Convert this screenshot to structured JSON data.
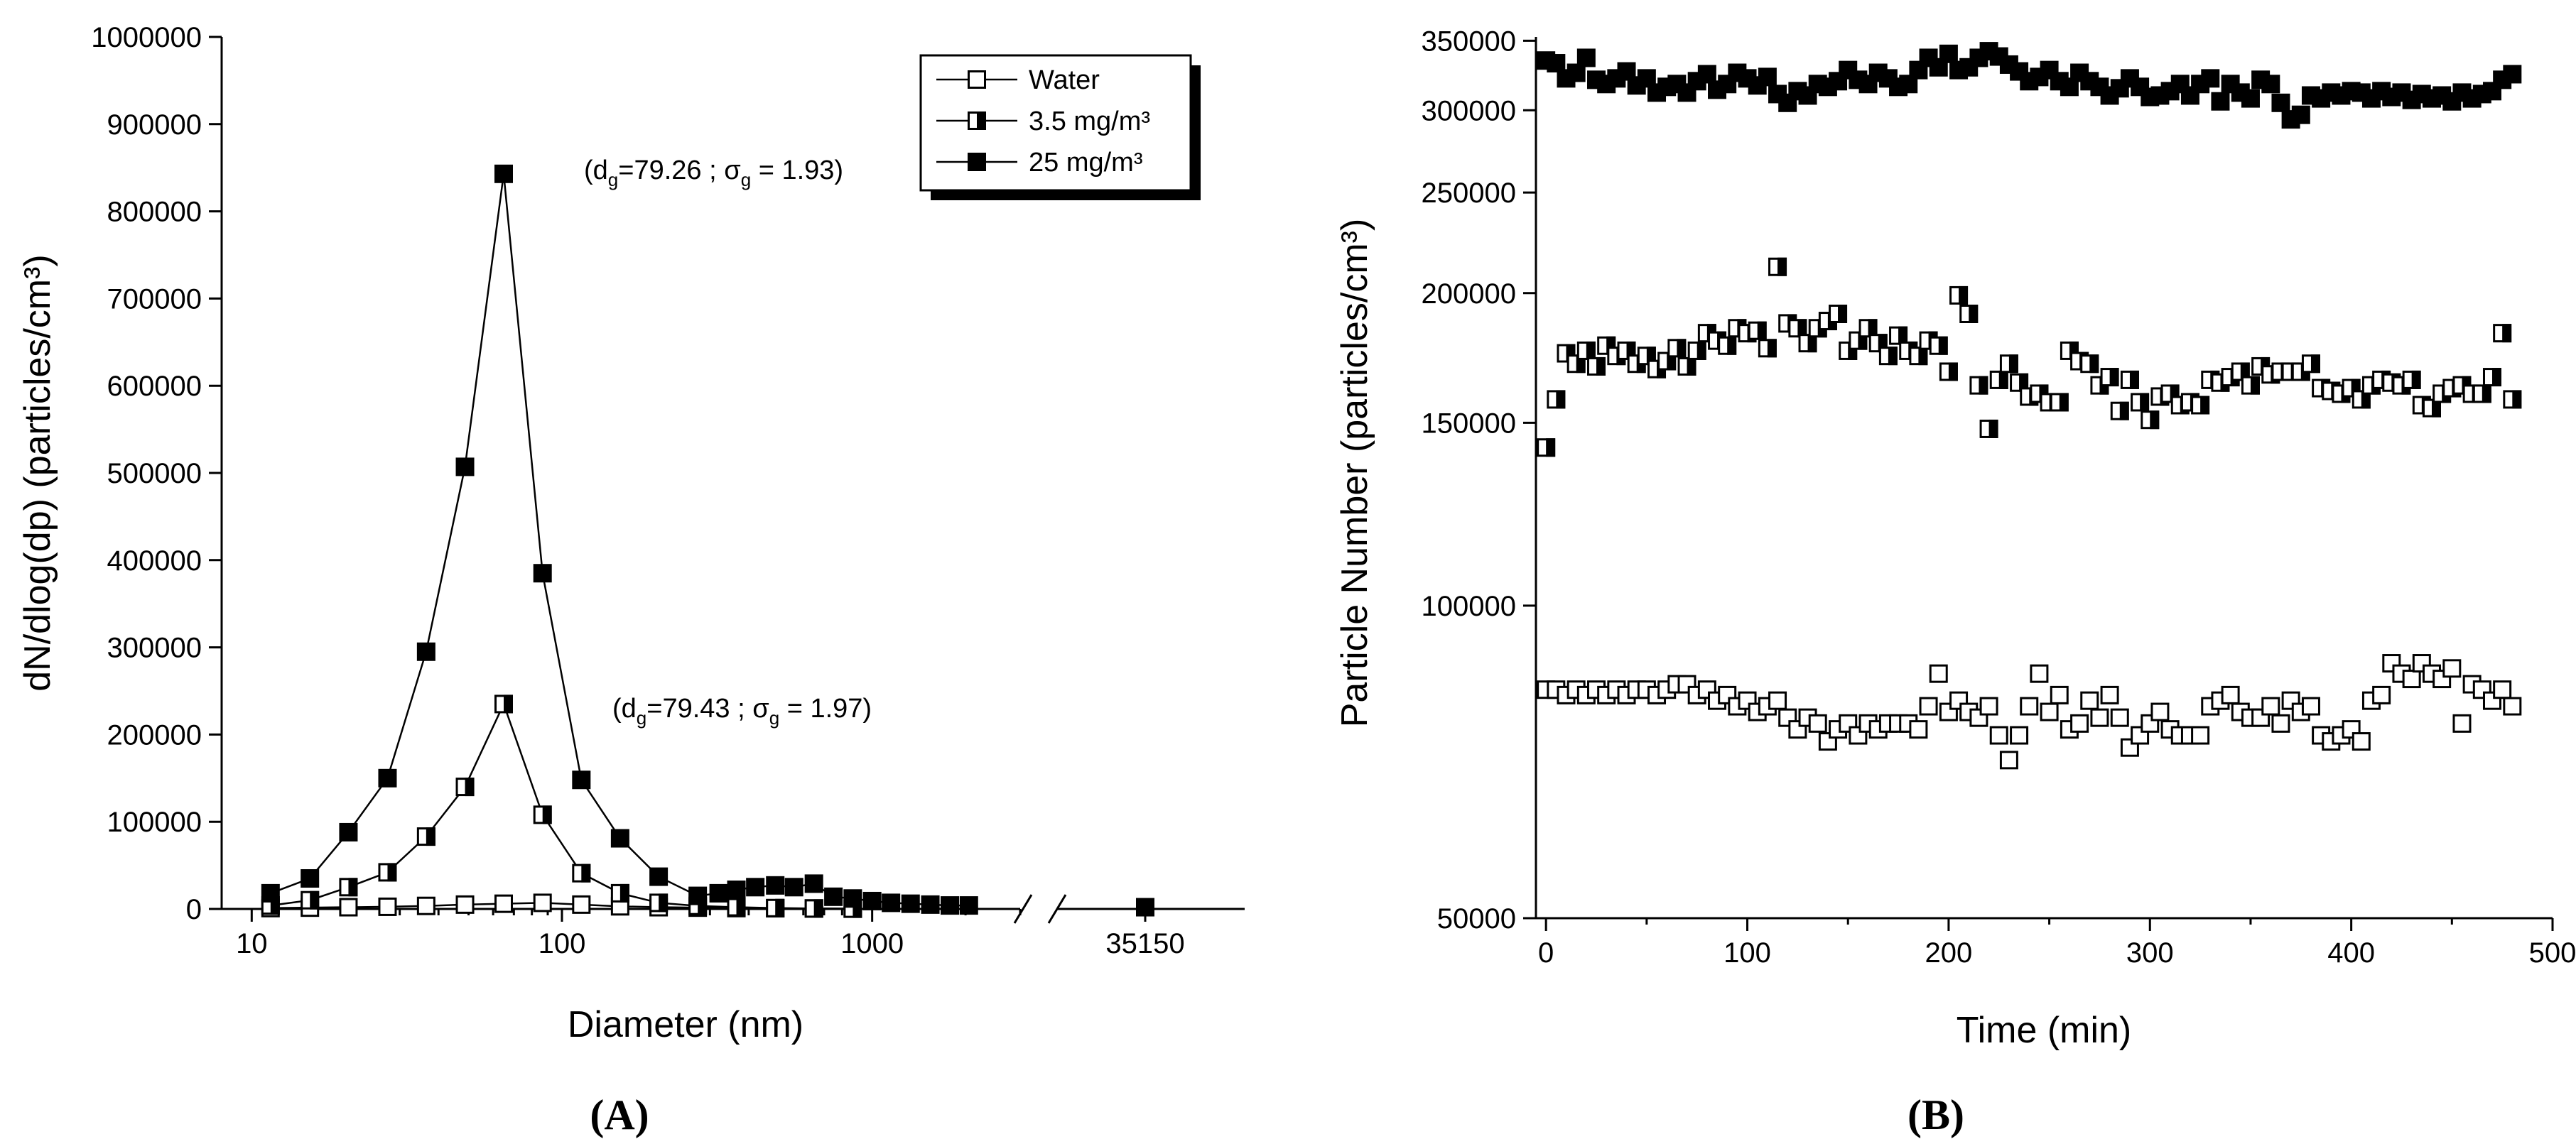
{
  "chart_data": [
    {
      "panel_label": "(A)",
      "type": "line",
      "xscale": "log",
      "xlabel": "Diameter (nm)",
      "ylabel": "dN/dlog(dp) (particles/cm³)",
      "ylim": [
        0,
        1000000
      ],
      "xlim": [
        8,
        3000
      ],
      "x_break_label": "35150",
      "x_ticks": [
        10,
        100,
        1000
      ],
      "y_ticks": [
        0,
        100000,
        200000,
        300000,
        400000,
        500000,
        600000,
        700000,
        800000,
        900000,
        1000000
      ],
      "legend": [
        "Water",
        "3.5 mg/m³",
        "25 mg/m³"
      ],
      "annotations": [
        {
          "text": "(d<sub>g</sub>=79.26 ; σ<sub>g</sub> = 1.93)",
          "prefix": "(d",
          "sub1": "g",
          "mid": "=79.26 ; σ",
          "sub2": "g",
          "suffix": " = 1.93)",
          "series": "25 mg/m³"
        },
        {
          "prefix": "(d",
          "sub1": "g",
          "mid": "=79.43 ; σ",
          "sub2": "g",
          "suffix": " = 1.97)",
          "series": "3.5 mg/m³"
        }
      ],
      "series": [
        {
          "name": "Water",
          "marker": "open",
          "x": [
            11.5,
            15.4,
            20.5,
            27.4,
            36.5,
            48.7,
            64.9,
            86.6,
            115.5,
            154,
            205,
            274,
            365,
            487,
            649,
            866
          ],
          "values": [
            1000,
            1500,
            2000,
            2500,
            3500,
            5000,
            6000,
            7000,
            5000,
            3000,
            2000,
            1500,
            1000,
            800,
            600,
            400
          ]
        },
        {
          "name": "3.5 mg/m³",
          "marker": "half",
          "x": [
            11.5,
            15.4,
            20.5,
            27.4,
            36.5,
            48.7,
            64.9,
            86.6,
            115.5,
            154,
            205,
            274,
            365,
            487,
            649,
            866
          ],
          "values": [
            4000,
            10000,
            25000,
            42000,
            83000,
            140000,
            235000,
            108000,
            41000,
            18000,
            7000,
            3500,
            2000,
            1000,
            500,
            300
          ]
        },
        {
          "name": "25 mg/m³",
          "marker": "filled",
          "x": [
            11.5,
            15.4,
            20.5,
            27.4,
            36.5,
            48.7,
            64.9,
            86.6,
            115.5,
            154,
            205,
            274,
            320,
            365,
            420,
            487,
            560,
            649,
            750,
            866,
            1000,
            1150,
            1330,
            1540,
            1780,
            2050
          ],
          "values": [
            18000,
            35000,
            88000,
            150000,
            295000,
            507000,
            843000,
            385000,
            148000,
            81000,
            37000,
            15000,
            18000,
            22000,
            25000,
            27000,
            25000,
            29000,
            14000,
            12000,
            9000,
            7000,
            6000,
            5000,
            4000,
            4000
          ],
          "break_point": {
            "x_label": "35150",
            "value": 2000
          }
        }
      ]
    },
    {
      "panel_label": "(B)",
      "type": "scatter",
      "yscale": "log",
      "xlabel": "Time (min)",
      "ylabel": "Particle Number (particles/cm³)",
      "xlim": [
        -5,
        500
      ],
      "ylim": [
        50000,
        350000
      ],
      "x_ticks": [
        0,
        100,
        200,
        300,
        400,
        500
      ],
      "y_ticks": [
        50000,
        100000,
        150000,
        200000,
        250000,
        300000,
        350000
      ],
      "series": [
        {
          "name": "25 mg/m³",
          "marker": "filled",
          "x": [
            0,
            5,
            10,
            15,
            20,
            25,
            30,
            35,
            40,
            45,
            50,
            55,
            60,
            65,
            70,
            75,
            80,
            85,
            90,
            95,
            100,
            105,
            110,
            115,
            120,
            125,
            130,
            135,
            140,
            145,
            150,
            155,
            160,
            165,
            170,
            175,
            180,
            185,
            190,
            195,
            200,
            205,
            210,
            215,
            220,
            225,
            230,
            235,
            240,
            245,
            250,
            255,
            260,
            265,
            270,
            275,
            280,
            285,
            290,
            295,
            300,
            305,
            310,
            315,
            320,
            325,
            330,
            335,
            340,
            345,
            350,
            355,
            360,
            365,
            370,
            375,
            380,
            385,
            390,
            395,
            400,
            405,
            410,
            415,
            420,
            425,
            430,
            435,
            440,
            445,
            450,
            455,
            460,
            465,
            470,
            475,
            480
          ],
          "values": [
            335000,
            333000,
            322000,
            326000,
            337000,
            321000,
            318000,
            322000,
            327000,
            317000,
            322000,
            312000,
            316000,
            318000,
            312000,
            320000,
            325000,
            314000,
            318000,
            326000,
            322000,
            317000,
            323000,
            311000,
            305000,
            313000,
            310000,
            318000,
            316000,
            320000,
            328000,
            321000,
            318000,
            326000,
            322000,
            316000,
            318000,
            328000,
            337000,
            330000,
            340000,
            328000,
            330000,
            337000,
            342000,
            338000,
            332000,
            327000,
            320000,
            323000,
            328000,
            320000,
            316000,
            326000,
            320000,
            316000,
            310000,
            315000,
            322000,
            316000,
            309000,
            310000,
            313000,
            318000,
            310000,
            318000,
            322000,
            306000,
            318000,
            312000,
            308000,
            321000,
            318000,
            305000,
            294000,
            297000,
            310000,
            308000,
            312000,
            310000,
            313000,
            312000,
            308000,
            313000,
            309000,
            312000,
            307000,
            311000,
            308000,
            310000,
            306000,
            312000,
            308000,
            311000,
            313000,
            321000,
            325000
          ]
        },
        {
          "name": "3.5 mg/m³",
          "marker": "half",
          "x": [
            0,
            5,
            10,
            15,
            20,
            25,
            30,
            35,
            40,
            45,
            50,
            55,
            60,
            65,
            70,
            75,
            80,
            85,
            90,
            95,
            100,
            105,
            110,
            115,
            120,
            125,
            130,
            135,
            140,
            145,
            150,
            155,
            160,
            165,
            170,
            175,
            180,
            185,
            190,
            195,
            200,
            205,
            210,
            215,
            220,
            225,
            230,
            235,
            240,
            245,
            250,
            255,
            260,
            265,
            270,
            275,
            280,
            285,
            290,
            295,
            300,
            305,
            310,
            315,
            320,
            325,
            330,
            335,
            340,
            345,
            350,
            355,
            360,
            365,
            370,
            375,
            380,
            385,
            390,
            395,
            400,
            405,
            410,
            415,
            420,
            425,
            430,
            435,
            440,
            445,
            450,
            455,
            460,
            465,
            470,
            475,
            480
          ],
          "values": [
            142000,
            158000,
            175000,
            171000,
            176000,
            170000,
            178000,
            174000,
            176000,
            171000,
            174000,
            169000,
            172000,
            177000,
            170000,
            176000,
            183000,
            180000,
            178000,
            185000,
            183000,
            184000,
            177000,
            212000,
            187000,
            185000,
            179000,
            185000,
            188000,
            191000,
            176000,
            180000,
            185000,
            179000,
            174000,
            182000,
            176000,
            174000,
            180000,
            178000,
            168000,
            199000,
            191000,
            163000,
            148000,
            165000,
            171000,
            164000,
            159000,
            160000,
            157000,
            157000,
            176000,
            172000,
            171000,
            163000,
            166000,
            154000,
            165000,
            157000,
            151000,
            159000,
            160000,
            156000,
            157000,
            156000,
            165000,
            164000,
            166000,
            168000,
            163000,
            170000,
            167000,
            168000,
            168000,
            168000,
            171000,
            162000,
            161000,
            160000,
            162000,
            158000,
            163000,
            165000,
            164000,
            163000,
            165000,
            156000,
            155000,
            160000,
            162000,
            163000,
            160000,
            160000,
            166000,
            183000,
            158000
          ]
        },
        {
          "name": "Water",
          "marker": "open",
          "x": [
            0,
            5,
            10,
            15,
            20,
            25,
            30,
            35,
            40,
            45,
            50,
            55,
            60,
            65,
            70,
            75,
            80,
            85,
            90,
            95,
            100,
            105,
            110,
            115,
            120,
            125,
            130,
            135,
            140,
            145,
            150,
            155,
            160,
            165,
            170,
            175,
            180,
            185,
            190,
            195,
            200,
            205,
            210,
            215,
            220,
            225,
            230,
            235,
            240,
            245,
            250,
            255,
            260,
            265,
            270,
            275,
            280,
            285,
            290,
            295,
            300,
            305,
            310,
            315,
            320,
            325,
            330,
            335,
            340,
            345,
            350,
            355,
            360,
            365,
            370,
            375,
            380,
            385,
            390,
            395,
            400,
            405,
            410,
            415,
            420,
            425,
            430,
            435,
            440,
            445,
            450,
            455,
            460,
            465,
            470,
            475,
            480
          ],
          "values": [
            83000,
            83000,
            82000,
            83000,
            82000,
            83000,
            82000,
            83000,
            82000,
            83000,
            83000,
            82000,
            83000,
            84000,
            84000,
            82000,
            83000,
            81000,
            82000,
            80000,
            81000,
            79000,
            80000,
            81000,
            78000,
            76000,
            78000,
            77000,
            74000,
            76000,
            77000,
            75000,
            77000,
            76000,
            77000,
            77000,
            77000,
            76000,
            80000,
            86000,
            79000,
            81000,
            79000,
            78000,
            80000,
            75000,
            71000,
            75000,
            80000,
            86000,
            79000,
            82000,
            76000,
            77000,
            81000,
            78000,
            82000,
            78000,
            73000,
            75000,
            77000,
            79000,
            76000,
            75000,
            75000,
            75000,
            80000,
            81000,
            82000,
            79000,
            78000,
            78000,
            80000,
            77000,
            81000,
            79000,
            80000,
            75000,
            74000,
            75000,
            76000,
            74000,
            81000,
            82000,
            88000,
            86000,
            85000,
            88000,
            86000,
            85000,
            87000,
            77000,
            84000,
            83000,
            81000,
            83000,
            80000
          ]
        }
      ]
    }
  ]
}
